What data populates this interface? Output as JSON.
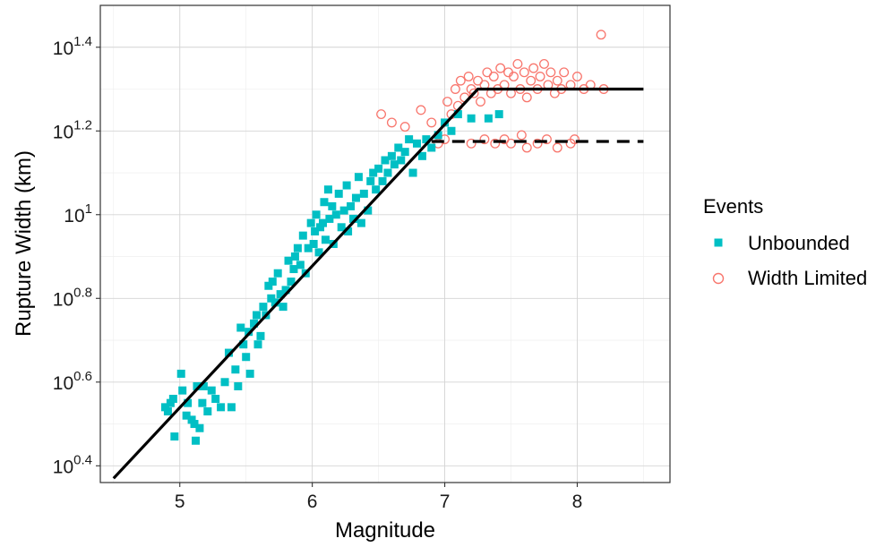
{
  "chart_data": {
    "type": "scatter",
    "xlabel": "Magnitude",
    "ylabel": "Rupture Width (km)",
    "y_scale": "log10",
    "xlim": [
      4.4,
      8.7
    ],
    "ylim_log10": [
      0.36,
      1.5
    ],
    "x_ticks": [
      5,
      6,
      7,
      8
    ],
    "x_tick_labels": [
      "5",
      "6",
      "7",
      "8"
    ],
    "y_ticks_log10": [
      0.4,
      0.6,
      0.8,
      1.0,
      1.2,
      1.4
    ],
    "y_tick_labels": [
      {
        "base": "10",
        "exp": "0.4"
      },
      {
        "base": "10",
        "exp": "0.6"
      },
      {
        "base": "10",
        "exp": "0.8"
      },
      {
        "base": "10",
        "exp": "1"
      },
      {
        "base": "10",
        "exp": "1.2"
      },
      {
        "base": "10",
        "exp": "1.4"
      }
    ],
    "grid": true,
    "legend": {
      "title": "Events",
      "position": "right",
      "entries": [
        {
          "label": "Unbounded",
          "marker": "filled-square",
          "color": "#00BFC4"
        },
        {
          "label": "Width Limited",
          "marker": "open-circle",
          "color": "#F8766D"
        }
      ]
    },
    "series": [
      {
        "name": "Unbounded",
        "marker": "filled-square",
        "color": "#00BFC4",
        "points": [
          [
            4.89,
            0.54
          ],
          [
            4.91,
            0.53
          ],
          [
            4.93,
            0.55
          ],
          [
            4.95,
            0.56
          ],
          [
            4.96,
            0.47
          ],
          [
            5.01,
            0.62
          ],
          [
            5.02,
            0.58
          ],
          [
            5.05,
            0.52
          ],
          [
            5.06,
            0.55
          ],
          [
            5.09,
            0.51
          ],
          [
            5.11,
            0.5
          ],
          [
            5.12,
            0.46
          ],
          [
            5.13,
            0.59
          ],
          [
            5.15,
            0.49
          ],
          [
            5.17,
            0.55
          ],
          [
            5.18,
            0.59
          ],
          [
            5.21,
            0.53
          ],
          [
            5.24,
            0.58
          ],
          [
            5.27,
            0.56
          ],
          [
            5.31,
            0.54
          ],
          [
            5.34,
            0.6
          ],
          [
            5.37,
            0.67
          ],
          [
            5.39,
            0.54
          ],
          [
            5.42,
            0.63
          ],
          [
            5.44,
            0.59
          ],
          [
            5.46,
            0.73
          ],
          [
            5.48,
            0.69
          ],
          [
            5.5,
            0.66
          ],
          [
            5.52,
            0.72
          ],
          [
            5.53,
            0.62
          ],
          [
            5.56,
            0.74
          ],
          [
            5.58,
            0.76
          ],
          [
            5.59,
            0.69
          ],
          [
            5.61,
            0.71
          ],
          [
            5.63,
            0.78
          ],
          [
            5.65,
            0.76
          ],
          [
            5.67,
            0.83
          ],
          [
            5.69,
            0.8
          ],
          [
            5.7,
            0.84
          ],
          [
            5.72,
            0.79
          ],
          [
            5.74,
            0.86
          ],
          [
            5.76,
            0.81
          ],
          [
            5.78,
            0.78
          ],
          [
            5.8,
            0.82
          ],
          [
            5.82,
            0.89
          ],
          [
            5.84,
            0.84
          ],
          [
            5.86,
            0.87
          ],
          [
            5.87,
            0.9
          ],
          [
            5.89,
            0.92
          ],
          [
            5.91,
            0.88
          ],
          [
            5.93,
            0.95
          ],
          [
            5.95,
            0.86
          ],
          [
            5.97,
            0.92
          ],
          [
            5.99,
            0.98
          ],
          [
            6.01,
            0.93
          ],
          [
            6.02,
            0.96
          ],
          [
            6.03,
            1.0
          ],
          [
            6.05,
            0.91
          ],
          [
            6.06,
            0.97
          ],
          [
            6.08,
            0.98
          ],
          [
            6.09,
            1.03
          ],
          [
            6.1,
            0.94
          ],
          [
            6.12,
            1.06
          ],
          [
            6.13,
            0.99
          ],
          [
            6.15,
            1.02
          ],
          [
            6.16,
            0.93
          ],
          [
            6.18,
            1.0
          ],
          [
            6.2,
            1.05
          ],
          [
            6.22,
            0.97
          ],
          [
            6.24,
            1.01
          ],
          [
            6.26,
            1.07
          ],
          [
            6.27,
            0.96
          ],
          [
            6.29,
            1.02
          ],
          [
            6.31,
            0.99
          ],
          [
            6.33,
            1.04
          ],
          [
            6.35,
            1.09
          ],
          [
            6.37,
            0.98
          ],
          [
            6.39,
            1.05
          ],
          [
            6.42,
            1.01
          ],
          [
            6.44,
            1.08
          ],
          [
            6.46,
            1.1
          ],
          [
            6.48,
            1.06
          ],
          [
            6.5,
            1.11
          ],
          [
            6.53,
            1.08
          ],
          [
            6.55,
            1.13
          ],
          [
            6.57,
            1.1
          ],
          [
            6.6,
            1.14
          ],
          [
            6.62,
            1.12
          ],
          [
            6.65,
            1.16
          ],
          [
            6.67,
            1.13
          ],
          [
            6.7,
            1.15
          ],
          [
            6.73,
            1.18
          ],
          [
            6.76,
            1.1
          ],
          [
            6.79,
            1.17
          ],
          [
            6.83,
            1.14
          ],
          [
            6.86,
            1.18
          ],
          [
            6.9,
            1.16
          ],
          [
            6.95,
            1.19
          ],
          [
            7.0,
            1.22
          ],
          [
            7.05,
            1.2
          ],
          [
            7.1,
            1.24
          ],
          [
            7.2,
            1.23
          ],
          [
            7.33,
            1.23
          ],
          [
            7.41,
            1.24
          ]
        ]
      },
      {
        "name": "Width Limited",
        "marker": "open-circle",
        "color": "#F8766D",
        "points": [
          [
            6.52,
            1.24
          ],
          [
            6.6,
            1.22
          ],
          [
            6.7,
            1.21
          ],
          [
            6.82,
            1.25
          ],
          [
            6.9,
            1.22
          ],
          [
            6.95,
            1.17
          ],
          [
            7.0,
            1.18
          ],
          [
            7.02,
            1.27
          ],
          [
            7.05,
            1.24
          ],
          [
            7.08,
            1.3
          ],
          [
            7.1,
            1.26
          ],
          [
            7.12,
            1.32
          ],
          [
            7.15,
            1.28
          ],
          [
            7.18,
            1.33
          ],
          [
            7.2,
            1.3
          ],
          [
            7.22,
            1.29
          ],
          [
            7.25,
            1.32
          ],
          [
            7.27,
            1.27
          ],
          [
            7.3,
            1.31
          ],
          [
            7.32,
            1.34
          ],
          [
            7.35,
            1.29
          ],
          [
            7.37,
            1.33
          ],
          [
            7.4,
            1.3
          ],
          [
            7.42,
            1.35
          ],
          [
            7.45,
            1.31
          ],
          [
            7.48,
            1.34
          ],
          [
            7.5,
            1.29
          ],
          [
            7.52,
            1.33
          ],
          [
            7.55,
            1.36
          ],
          [
            7.57,
            1.3
          ],
          [
            7.6,
            1.34
          ],
          [
            7.62,
            1.28
          ],
          [
            7.65,
            1.32
          ],
          [
            7.67,
            1.35
          ],
          [
            7.7,
            1.3
          ],
          [
            7.72,
            1.33
          ],
          [
            7.75,
            1.36
          ],
          [
            7.78,
            1.31
          ],
          [
            7.8,
            1.34
          ],
          [
            7.83,
            1.29
          ],
          [
            7.85,
            1.32
          ],
          [
            7.88,
            1.3
          ],
          [
            7.9,
            1.34
          ],
          [
            7.95,
            1.31
          ],
          [
            8.0,
            1.33
          ],
          [
            8.05,
            1.3
          ],
          [
            8.1,
            1.31
          ],
          [
            8.18,
            1.43
          ],
          [
            8.2,
            1.3
          ],
          [
            7.2,
            1.17
          ],
          [
            7.3,
            1.18
          ],
          [
            7.38,
            1.17
          ],
          [
            7.45,
            1.18
          ],
          [
            7.5,
            1.17
          ],
          [
            7.58,
            1.19
          ],
          [
            7.62,
            1.16
          ],
          [
            7.7,
            1.17
          ],
          [
            7.77,
            1.18
          ],
          [
            7.85,
            1.16
          ],
          [
            7.95,
            1.17
          ],
          [
            7.98,
            1.18
          ]
        ]
      }
    ],
    "fit_lines": [
      {
        "name": "solid-fit",
        "style": "solid",
        "points": [
          [
            4.5,
            0.37
          ],
          [
            7.25,
            1.3
          ],
          [
            8.5,
            1.3
          ]
        ]
      },
      {
        "name": "dashed-fit",
        "style": "dashed",
        "points": [
          [
            6.9,
            1.175
          ],
          [
            8.5,
            1.175
          ]
        ]
      }
    ]
  }
}
